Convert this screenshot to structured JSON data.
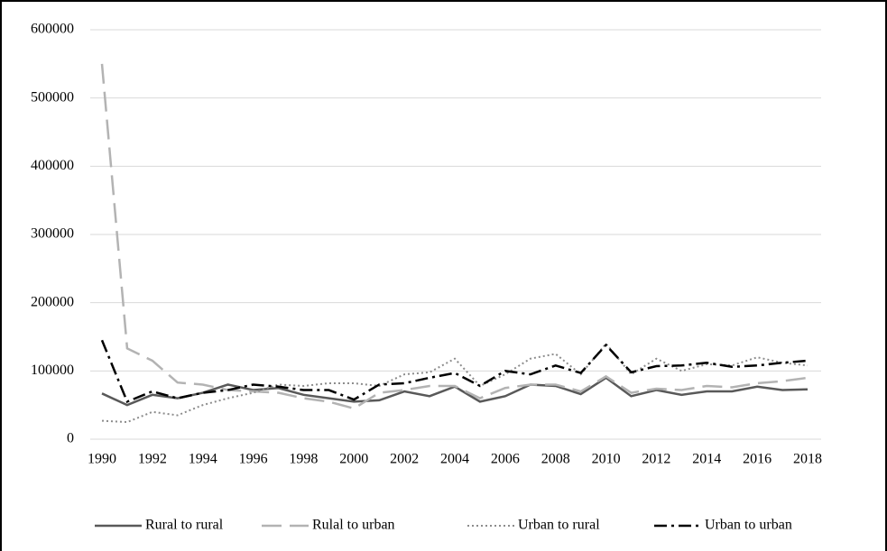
{
  "chart_data": {
    "type": "line",
    "categories": [
      "1990",
      null,
      "1992",
      null,
      "1994",
      null,
      "1996",
      null,
      "1998",
      null,
      "2000",
      null,
      "2002",
      null,
      "2004",
      null,
      "2006",
      null,
      "2008",
      null,
      "2010",
      null,
      "2012",
      null,
      "2014",
      null,
      "2016",
      null,
      "2018"
    ],
    "series": [
      {
        "name": "Rural to rural",
        "color": "#595959",
        "line_style": "solid",
        "values": [
          67000,
          50000,
          65000,
          60000,
          68000,
          80000,
          72000,
          75000,
          65000,
          60000,
          55000,
          57000,
          70000,
          63000,
          77000,
          55000,
          63000,
          80000,
          78000,
          66000,
          90000,
          63000,
          72000,
          65000,
          70000,
          70000,
          77000,
          72000,
          73000
        ]
      },
      {
        "name": "Rulal to urban",
        "color": "#b3b3b3",
        "line_style": "dashed",
        "values": [
          550000,
          133000,
          115000,
          83000,
          80000,
          72000,
          70000,
          68000,
          60000,
          55000,
          45000,
          68000,
          72000,
          78000,
          78000,
          60000,
          75000,
          80000,
          80000,
          70000,
          92000,
          68000,
          74000,
          72000,
          78000,
          76000,
          82000,
          85000,
          90000
        ]
      },
      {
        "name": "Urban to rural",
        "color": "#8c8c8c",
        "line_style": "dotted",
        "values": [
          27000,
          25000,
          40000,
          35000,
          50000,
          60000,
          68000,
          80000,
          78000,
          82000,
          82000,
          78000,
          95000,
          98000,
          118000,
          78000,
          95000,
          118000,
          125000,
          95000,
          140000,
          95000,
          118000,
          100000,
          110000,
          108000,
          120000,
          112000,
          108000
        ]
      },
      {
        "name": "Urban to urban",
        "color": "#000000",
        "line_style": "dashdot",
        "values": [
          145000,
          55000,
          70000,
          60000,
          68000,
          72000,
          80000,
          77000,
          72000,
          72000,
          58000,
          80000,
          82000,
          90000,
          97000,
          78000,
          100000,
          95000,
          108000,
          97000,
          138000,
          98000,
          107000,
          108000,
          112000,
          106000,
          108000,
          112000,
          115000
        ]
      }
    ],
    "ylim": [
      0,
      600000
    ],
    "yticks": [
      0,
      100000,
      200000,
      300000,
      400000,
      500000,
      600000
    ],
    "grid": true,
    "legend": "bottom"
  }
}
